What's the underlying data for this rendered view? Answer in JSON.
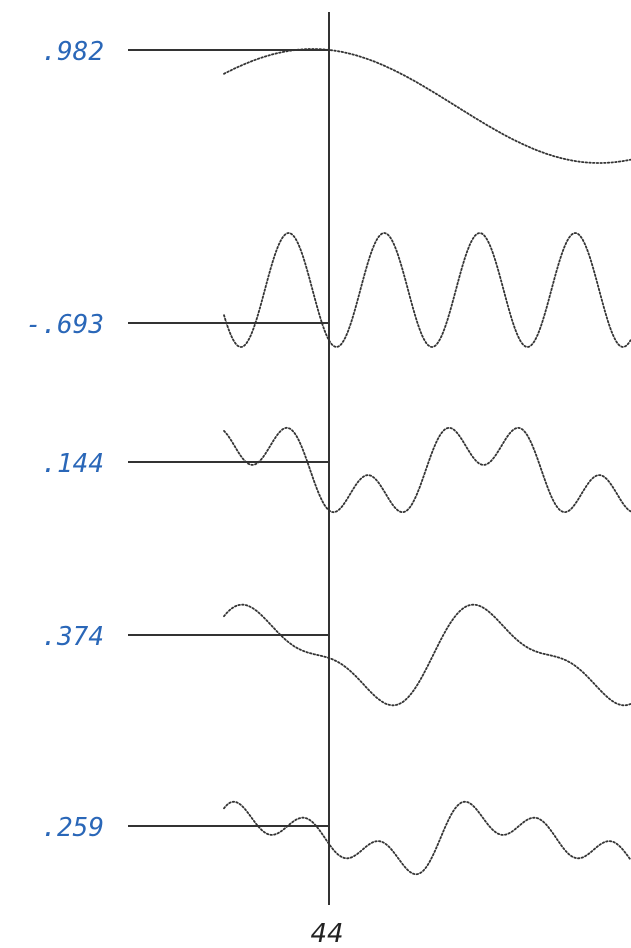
{
  "figure": {
    "sample_index_label": "44",
    "rows": [
      {
        "value_label": ".982",
        "kind": "sine",
        "frequency": 1,
        "combo": []
      },
      {
        "value_label": "-.693",
        "kind": "sine",
        "frequency": 6,
        "combo": []
      },
      {
        "value_label": ".144",
        "kind": "combo",
        "combo": [
          {
            "frequency": 2,
            "amplitude": 0.6
          },
          {
            "frequency": 6,
            "amplitude": 0.5
          }
        ]
      },
      {
        "value_label": ".374",
        "kind": "combo",
        "combo": [
          {
            "frequency": 2,
            "amplitude": 0.75
          },
          {
            "frequency": 4,
            "amplitude": 0.3
          }
        ]
      },
      {
        "value_label": ".259",
        "kind": "combo",
        "combo": [
          {
            "frequency": 2,
            "amplitude": 0.5
          },
          {
            "frequency": 6,
            "amplitude": 0.4
          },
          {
            "frequency": 4,
            "amplitude": 0.2
          }
        ]
      }
    ],
    "colors": {
      "label": "#2a67b8",
      "ink": "#333333"
    }
  }
}
